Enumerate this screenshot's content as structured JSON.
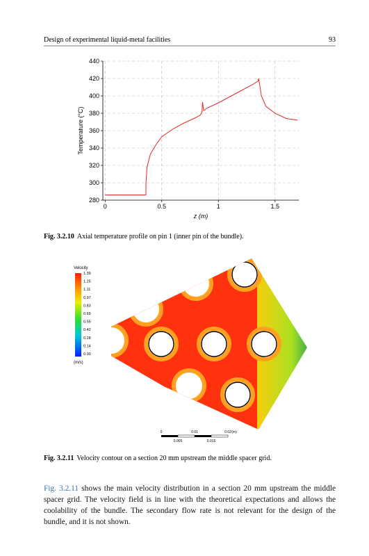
{
  "header": {
    "title": "Design of experimental liquid-metal facilities",
    "page": "93"
  },
  "chart_data": {
    "type": "line",
    "x": [
      0,
      0.36,
      0.361,
      0.37,
      0.4,
      0.45,
      0.5,
      0.6,
      0.7,
      0.8,
      0.84,
      0.855,
      0.86,
      0.87,
      0.9,
      1.0,
      1.1,
      1.2,
      1.3,
      1.35,
      1.356,
      1.38,
      1.42,
      1.5,
      1.6,
      1.7
    ],
    "series": [
      {
        "color": "#e02a20",
        "values": [
          286,
          286,
          300,
          318,
          333,
          344,
          353,
          362,
          369,
          375,
          378,
          381,
          393,
          383,
          386,
          392,
          399,
          406,
          413,
          417,
          420,
          400,
          388,
          380,
          374,
          372
        ]
      }
    ],
    "xlabel": "z (m)",
    "ylabel": "Temperature (°C)",
    "xlim": [
      -0.02,
      1.71
    ],
    "ylim": [
      280,
      440
    ],
    "xticks": [
      0,
      0.5,
      1,
      1.5
    ],
    "yticks": [
      280,
      300,
      320,
      340,
      360,
      380,
      400,
      420,
      440
    ],
    "grid": true
  },
  "caption1": {
    "label": "Fig. 3.2.10",
    "text": "Axial temperature profile on pin 1 (inner pin of the bundle)."
  },
  "contour": {
    "legend_title": "Velocity",
    "legend_labels": [
      "1.39",
      "1.25",
      "1.11",
      "0.97",
      "0.83",
      "0.69",
      "0.55",
      "0.42",
      "0.28",
      "0.14",
      "0.00"
    ],
    "unit": "(m/s)",
    "scale_top": [
      "0",
      "0.01",
      "0.02",
      "(m)"
    ],
    "scale_bottom": [
      "0.005",
      "0.015"
    ]
  },
  "caption2": {
    "label": "Fig. 3.2.11",
    "text": "Velocity contour on a section 20 mm upstream the middle spacer grid."
  },
  "paragraph": {
    "link": "Fig. 3.2.11",
    "text": " shows the main velocity distribution in a section 20 mm upstream the middle spacer grid. The velocity field is in line with the theoretical expectations and allows the coolability of the bundle. The secondary flow rate is not relevant for the design of the bundle, and it is not shown."
  }
}
